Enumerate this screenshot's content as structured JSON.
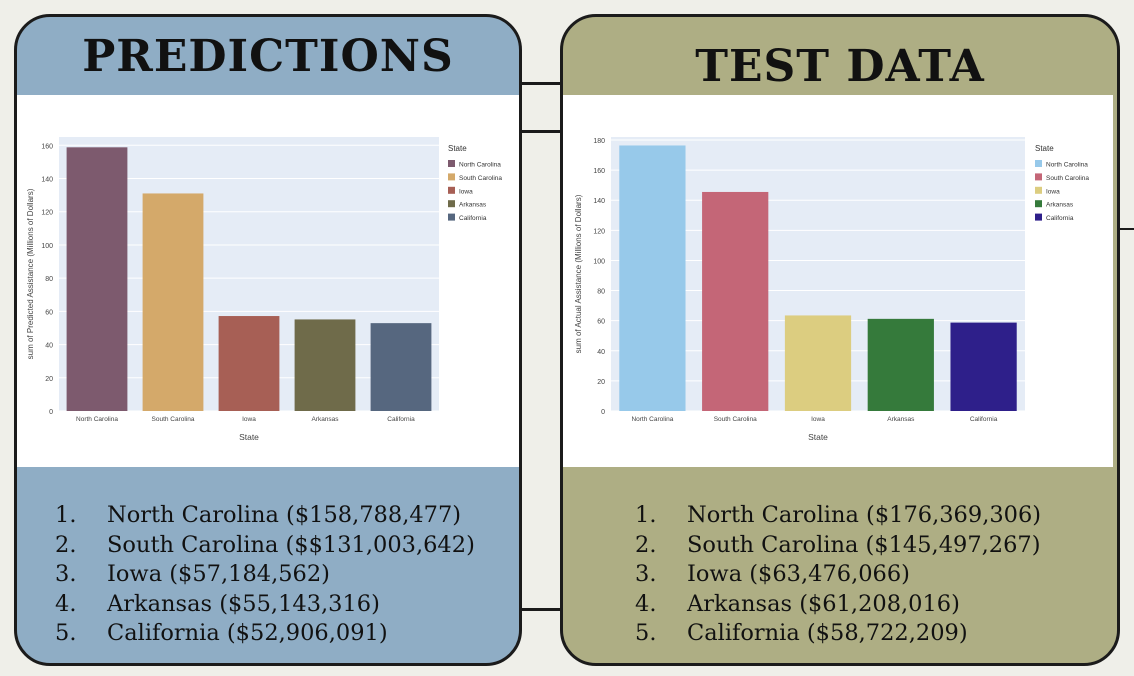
{
  "predictions": {
    "title": "PREDICTIONS",
    "ranking": [
      {
        "rank": "1.",
        "text": "North Carolina ($158,788,477)"
      },
      {
        "rank": "2.",
        "text": "South Carolina ($$131,003,642)"
      },
      {
        "rank": "3.",
        "text": "Iowa ($57,184,562)"
      },
      {
        "rank": "4.",
        "text": "Arkansas ($55,143,316)"
      },
      {
        "rank": "5.",
        "text": "California ($52,906,091)"
      }
    ]
  },
  "test_data": {
    "title": "TEST DATA",
    "ranking": [
      {
        "rank": "1.",
        "text": "North Carolina ($176,369,306)"
      },
      {
        "rank": "2.",
        "text": "South Carolina ($145,497,267)"
      },
      {
        "rank": "3.",
        "text": "Iowa ($63,476,066)"
      },
      {
        "rank": "4.",
        "text": "Arkansas ($61,208,016)"
      },
      {
        "rank": "5.",
        "text": "California ($58,722,209)"
      }
    ]
  },
  "chart_data": [
    {
      "type": "bar",
      "categories": [
        "North Carolina",
        "South Carolina",
        "Iowa",
        "Arkansas",
        "California"
      ],
      "values": [
        158.788477,
        131.003642,
        57.184562,
        55.143316,
        52.906091
      ],
      "colors": [
        "#7d5a6e",
        "#d4a96a",
        "#a75f55",
        "#6f6b4a",
        "#56677f"
      ],
      "xlabel": "State",
      "ylabel": "sum of Predicted Assistance (Millions of Dollars)",
      "ylim": [
        0,
        165
      ],
      "yticks": [
        0,
        20,
        40,
        60,
        80,
        100,
        120,
        140,
        160
      ],
      "legend_title": "State",
      "legend": [
        "North Carolina",
        "South Carolina",
        "Iowa",
        "Arkansas",
        "California"
      ],
      "legend_position": "top-right"
    },
    {
      "type": "bar",
      "categories": [
        "North Carolina",
        "South Carolina",
        "Iowa",
        "Arkansas",
        "California"
      ],
      "values": [
        176.369306,
        145.497267,
        63.476066,
        61.208016,
        58.722209
      ],
      "colors": [
        "#97c9ea",
        "#c46677",
        "#dccd80",
        "#357a3b",
        "#2e1f8a"
      ],
      "xlabel": "State",
      "ylabel": "sum of Actual Assistance (Millions of Dollars)",
      "ylim": [
        0,
        182
      ],
      "yticks": [
        0,
        20,
        40,
        60,
        80,
        100,
        120,
        140,
        160,
        180
      ],
      "legend_title": "State",
      "legend": [
        "North Carolina",
        "South Carolina",
        "Iowa",
        "Arkansas",
        "California"
      ],
      "legend_position": "top-right"
    }
  ]
}
